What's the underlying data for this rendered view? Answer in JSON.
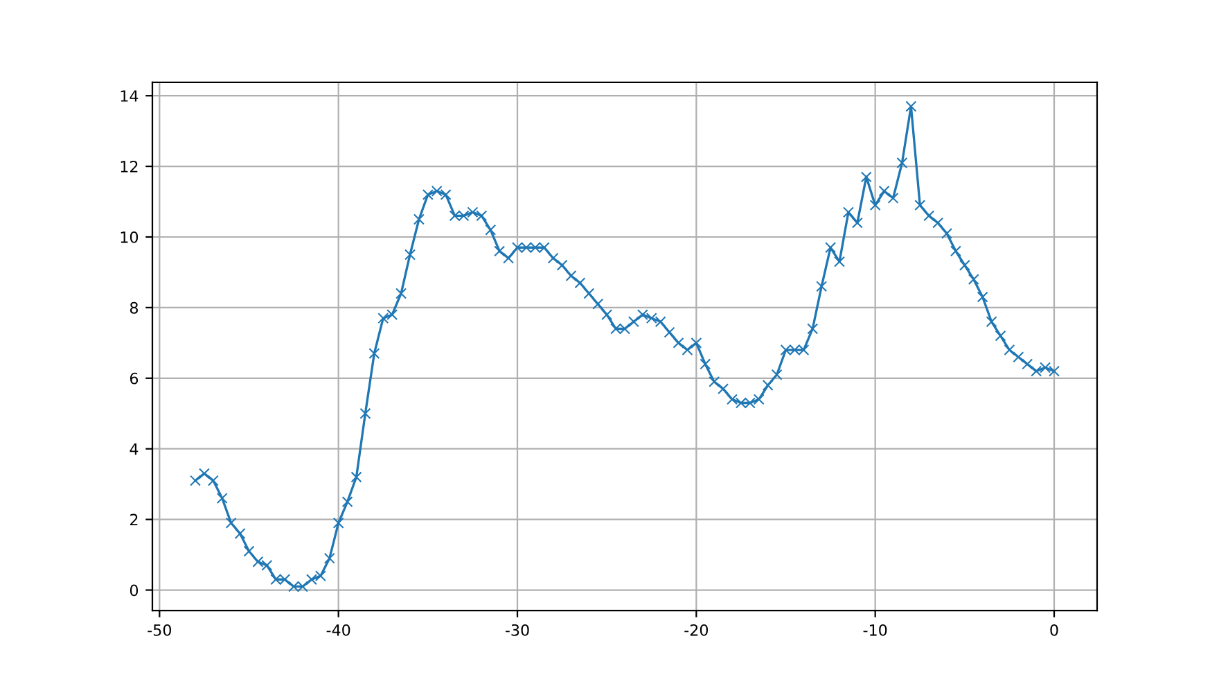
{
  "chart_data": {
    "type": "line",
    "marker": "cross",
    "grid": true,
    "x": [
      -48,
      -47.5,
      -47,
      -46.5,
      -46,
      -45.5,
      -45,
      -44.5,
      -44,
      -43.5,
      -43,
      -42.5,
      -42,
      -41.5,
      -41,
      -40.5,
      -40,
      -39.5,
      -39,
      -38.5,
      -38,
      -37.5,
      -37,
      -36.5,
      -36,
      -35.5,
      -35,
      -34.5,
      -34,
      -33.5,
      -33,
      -32.5,
      -32,
      -31.5,
      -31,
      -30.5,
      -30,
      -29.5,
      -29,
      -28.5,
      -28,
      -27.5,
      -27,
      -26.5,
      -26,
      -25.5,
      -25,
      -24.5,
      -24,
      -23.5,
      -23,
      -22.5,
      -22,
      -21.5,
      -21,
      -20.5,
      -20,
      -19.5,
      -19,
      -18.5,
      -18,
      -17.5,
      -17,
      -16.5,
      -16,
      -15.5,
      -15,
      -14.5,
      -14,
      -13.5,
      -13,
      -12.5,
      -12,
      -11.5,
      -11,
      -10.5,
      -10,
      -9.5,
      -9,
      -8.5,
      -8,
      -7.5,
      -7,
      -6.5,
      -6,
      -5.5,
      -5,
      -4.5,
      -4,
      -3.5,
      -3,
      -2.5,
      -2,
      -1.5,
      -1,
      -0.5,
      0
    ],
    "series": [
      {
        "color": "#1f77b4",
        "values": [
          3.1,
          3.3,
          3.1,
          2.6,
          1.9,
          1.6,
          1.1,
          0.8,
          0.7,
          0.3,
          0.3,
          0.1,
          0.1,
          0.3,
          0.4,
          0.9,
          1.9,
          2.5,
          3.2,
          5.0,
          6.7,
          7.7,
          7.8,
          8.4,
          9.5,
          10.5,
          11.2,
          11.3,
          11.2,
          10.6,
          10.6,
          10.7,
          10.6,
          10.2,
          9.6,
          9.4,
          9.7,
          9.7,
          9.7,
          9.7,
          9.4,
          9.2,
          8.9,
          8.7,
          8.4,
          8.1,
          7.8,
          7.4,
          7.4,
          7.6,
          7.8,
          7.7,
          7.6,
          7.3,
          7.0,
          6.8,
          7.0,
          6.4,
          5.9,
          5.7,
          5.4,
          5.3,
          5.3,
          5.4,
          5.8,
          6.1,
          6.8,
          6.8,
          6.8,
          7.4,
          8.6,
          9.7,
          9.3,
          10.7,
          10.4,
          11.7,
          10.9,
          11.3,
          11.1,
          12.1,
          13.7,
          10.9,
          10.6,
          10.4,
          10.1,
          9.6,
          9.2,
          8.8,
          8.3,
          7.6,
          7.2,
          6.8,
          6.6,
          6.4,
          6.2,
          6.3,
          6.2
        ]
      }
    ],
    "xlim": [
      -50.4,
      2.4
    ],
    "ylim": [
      -0.58,
      14.38
    ],
    "xticks": [
      -50,
      -40,
      -30,
      -20,
      -10,
      0
    ],
    "yticks": [
      0,
      2,
      4,
      6,
      8,
      10,
      12,
      14
    ]
  }
}
